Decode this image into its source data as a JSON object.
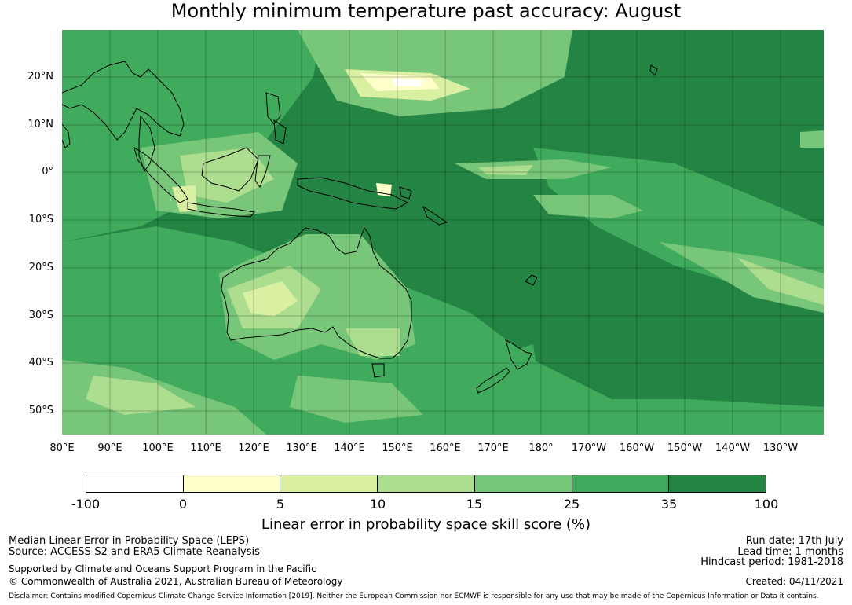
{
  "title": "Monthly minimum temperature past accuracy: August",
  "lat_labels": [
    "20°N",
    "10°N",
    "0°",
    "10°S",
    "20°S",
    "30°S",
    "40°S",
    "50°S"
  ],
  "lon_labels": [
    "80°E",
    "90°E",
    "100°E",
    "110°E",
    "120°E",
    "130°E",
    "140°E",
    "150°E",
    "160°E",
    "170°E",
    "180°",
    "170°W",
    "160°W",
    "150°W",
    "140°W",
    "130°W"
  ],
  "colorbar": {
    "ticks": [
      "-100",
      "0",
      "5",
      "10",
      "15",
      "25",
      "35",
      "100"
    ],
    "colors": [
      "#ffffff",
      "#ffffcc",
      "#d9f0a3",
      "#addd8e",
      "#78c679",
      "#41ab5d",
      "#238443"
    ],
    "label": "Linear error in probability space skill score (%)"
  },
  "footer": {
    "line1": "Median Linear Error in Probability Space (LEPS)",
    "line2": "Source: ACCESS-S2 and ERA5 Climate Reanalysis",
    "line3": "Supported by Climate and Oceans Support Program in the Pacific",
    "line4": "© Commonwealth of Australia 2021, Australian Bureau of Meteorology",
    "run_date": "Run date: 17th July",
    "lead_time": "Lead time: 1 months",
    "hindcast": "Hindcast period: 1981-2018",
    "created": "Created: 04/11/2021",
    "disclaimer": "Disclaimer: Contains modified Copernicus Climate Change Service Information [2019]. Neither the European Commission nor ECMWF is responsible for any use that may be made of the Copernicus Information or Data it contains."
  }
}
